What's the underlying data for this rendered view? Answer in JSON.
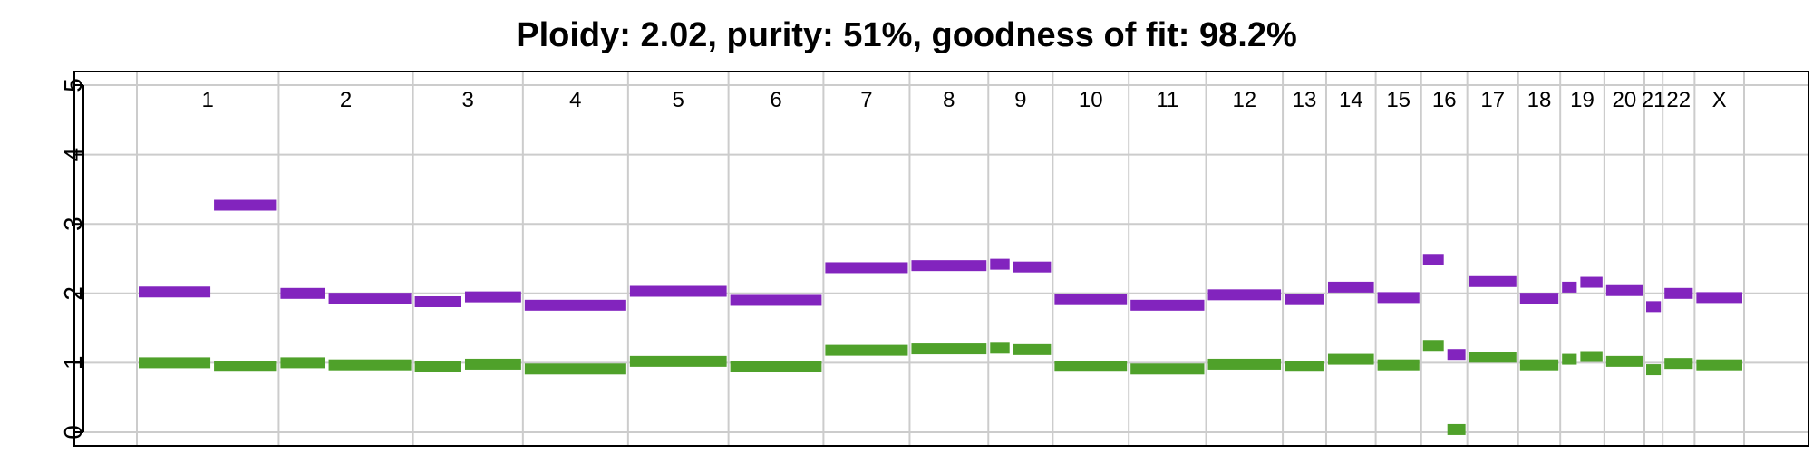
{
  "chart_data": {
    "type": "segment",
    "title": "Ploidy: 2.02, purity: 51%, goodness of fit: 98.2%",
    "ylim": [
      0,
      5
    ],
    "yticks": [
      "0",
      "1",
      "2",
      "3",
      "4",
      "5"
    ],
    "grid": true,
    "colors": {
      "major": "#8224be",
      "minor": "#4fa12a",
      "grid": "#cccccc",
      "axis": "#000000"
    },
    "chromosomes": [
      {
        "label": "1",
        "span": [
          0.0,
          20.9
        ]
      },
      {
        "label": "2",
        "span": [
          20.9,
          40.7
        ]
      },
      {
        "label": "3",
        "span": [
          40.7,
          56.9
        ]
      },
      {
        "label": "4",
        "span": [
          56.9,
          72.4
        ]
      },
      {
        "label": "5",
        "span": [
          72.4,
          87.2
        ]
      },
      {
        "label": "6",
        "span": [
          87.2,
          101.2
        ]
      },
      {
        "label": "7",
        "span": [
          101.2,
          113.9
        ]
      },
      {
        "label": "8",
        "span": [
          113.9,
          125.5
        ]
      },
      {
        "label": "9",
        "span": [
          125.5,
          135.0
        ]
      },
      {
        "label": "10",
        "span": [
          135.0,
          146.2
        ]
      },
      {
        "label": "11",
        "span": [
          146.2,
          157.6
        ]
      },
      {
        "label": "12",
        "span": [
          157.6,
          168.9
        ]
      },
      {
        "label": "13",
        "span": [
          168.9,
          175.3
        ]
      },
      {
        "label": "14",
        "span": [
          175.3,
          182.6
        ]
      },
      {
        "label": "15",
        "span": [
          182.6,
          189.3
        ]
      },
      {
        "label": "16",
        "span": [
          189.3,
          196.1
        ]
      },
      {
        "label": "17",
        "span": [
          196.1,
          203.6
        ]
      },
      {
        "label": "18",
        "span": [
          203.6,
          209.8
        ]
      },
      {
        "label": "19",
        "span": [
          209.8,
          216.3
        ]
      },
      {
        "label": "20",
        "span": [
          216.3,
          222.2
        ]
      },
      {
        "label": "21",
        "span": [
          222.2,
          224.9
        ]
      },
      {
        "label": "22",
        "span": [
          224.9,
          229.6
        ]
      },
      {
        "label": "X",
        "span": [
          229.6,
          236.9
        ]
      }
    ],
    "series": [
      {
        "values": [
          {
            "x": [
              0.0,
              11.1
            ],
            "y": 2.02
          },
          {
            "x": [
              11.1,
              20.9
            ],
            "y": 3.27
          },
          {
            "x": [
              20.9,
              28.0
            ],
            "y": 2.0
          },
          {
            "x": [
              28.0,
              40.7
            ],
            "y": 1.93
          },
          {
            "x": [
              40.7,
              48.1
            ],
            "y": 1.88
          },
          {
            "x": [
              48.1,
              56.9
            ],
            "y": 1.95
          },
          {
            "x": [
              56.9,
              72.4
            ],
            "y": 1.83
          },
          {
            "x": [
              72.4,
              87.2
            ],
            "y": 2.03
          },
          {
            "x": [
              87.2,
              101.2
            ],
            "y": 1.9
          },
          {
            "x": [
              101.2,
              113.9
            ],
            "y": 2.37
          },
          {
            "x": [
              113.9,
              125.5
            ],
            "y": 2.4
          },
          {
            "x": [
              125.5,
              128.9
            ],
            "y": 2.42
          },
          {
            "x": [
              128.9,
              135.0
            ],
            "y": 2.38
          },
          {
            "x": [
              135.0,
              146.2
            ],
            "y": 1.91
          },
          {
            "x": [
              146.2,
              157.6
            ],
            "y": 1.83
          },
          {
            "x": [
              157.6,
              168.9
            ],
            "y": 1.98
          },
          {
            "x": [
              168.9,
              175.3
            ],
            "y": 1.91
          },
          {
            "x": [
              175.3,
              182.6
            ],
            "y": 2.09
          },
          {
            "x": [
              182.6,
              189.3
            ],
            "y": 1.94
          },
          {
            "x": [
              189.3,
              192.9
            ],
            "y": 2.49
          },
          {
            "x": [
              192.9,
              196.1
            ],
            "y": 1.12
          },
          {
            "x": [
              196.1,
              203.6
            ],
            "y": 2.17
          },
          {
            "x": [
              203.6,
              209.8
            ],
            "y": 1.93
          },
          {
            "x": [
              209.8,
              212.5
            ],
            "y": 2.09
          },
          {
            "x": [
              212.5,
              216.3
            ],
            "y": 2.16
          },
          {
            "x": [
              216.3,
              222.2
            ],
            "y": 2.04
          },
          {
            "x": [
              222.2,
              224.9
            ],
            "y": 1.81
          },
          {
            "x": [
              224.9,
              229.6
            ],
            "y": 2.0
          },
          {
            "x": [
              229.6,
              236.9
            ],
            "y": 1.94
          }
        ]
      },
      {
        "values": [
          {
            "x": [
              0.0,
              11.1
            ],
            "y": 1.0
          },
          {
            "x": [
              11.1,
              20.9
            ],
            "y": 0.95
          },
          {
            "x": [
              20.9,
              28.0
            ],
            "y": 1.0
          },
          {
            "x": [
              28.0,
              40.7
            ],
            "y": 0.97
          },
          {
            "x": [
              40.7,
              48.1
            ],
            "y": 0.94
          },
          {
            "x": [
              48.1,
              56.9
            ],
            "y": 0.98
          },
          {
            "x": [
              56.9,
              72.4
            ],
            "y": 0.91
          },
          {
            "x": [
              72.4,
              87.2
            ],
            "y": 1.02
          },
          {
            "x": [
              87.2,
              101.2
            ],
            "y": 0.94
          },
          {
            "x": [
              101.2,
              113.9
            ],
            "y": 1.18
          },
          {
            "x": [
              113.9,
              125.5
            ],
            "y": 1.2
          },
          {
            "x": [
              125.5,
              128.9
            ],
            "y": 1.21
          },
          {
            "x": [
              128.9,
              135.0
            ],
            "y": 1.19
          },
          {
            "x": [
              135.0,
              146.2
            ],
            "y": 0.95
          },
          {
            "x": [
              146.2,
              157.6
            ],
            "y": 0.91
          },
          {
            "x": [
              157.6,
              168.9
            ],
            "y": 0.98
          },
          {
            "x": [
              168.9,
              175.3
            ],
            "y": 0.95
          },
          {
            "x": [
              175.3,
              182.6
            ],
            "y": 1.05
          },
          {
            "x": [
              182.6,
              189.3
            ],
            "y": 0.97
          },
          {
            "x": [
              189.3,
              192.9
            ],
            "y": 1.25
          },
          {
            "x": [
              192.9,
              196.1
            ],
            "y": 0.04
          },
          {
            "x": [
              196.1,
              203.6
            ],
            "y": 1.08
          },
          {
            "x": [
              203.6,
              209.8
            ],
            "y": 0.97
          },
          {
            "x": [
              209.8,
              212.5
            ],
            "y": 1.05
          },
          {
            "x": [
              212.5,
              216.3
            ],
            "y": 1.09
          },
          {
            "x": [
              216.3,
              222.2
            ],
            "y": 1.02
          },
          {
            "x": [
              222.2,
              224.9
            ],
            "y": 0.9
          },
          {
            "x": [
              224.9,
              229.6
            ],
            "y": 0.99
          },
          {
            "x": [
              229.6,
              236.9
            ],
            "y": 0.97
          }
        ]
      }
    ]
  }
}
